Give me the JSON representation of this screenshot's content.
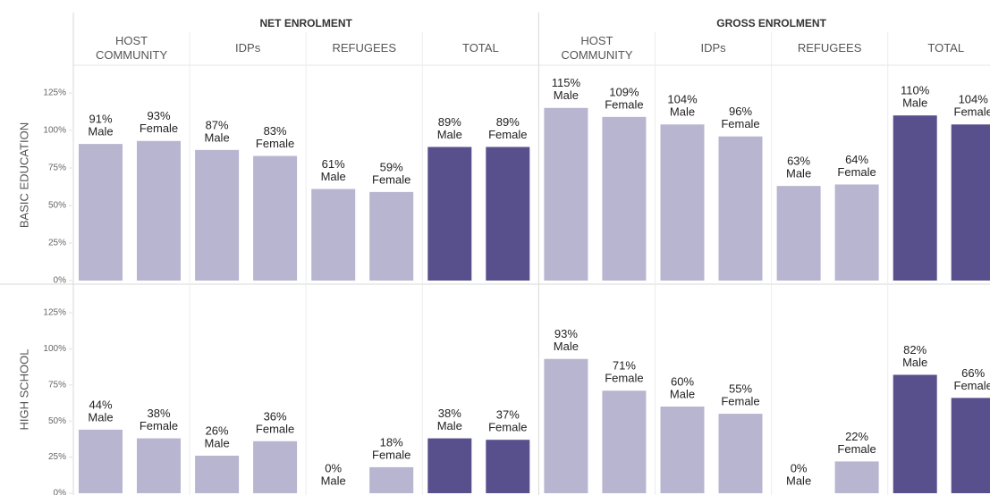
{
  "chart_data": {
    "type": "bar",
    "sections": [
      {
        "title": "NET ENROLMENT"
      },
      {
        "title": "GROSS ENROLMENT"
      }
    ],
    "columns": [
      "HOST COMMUNITY",
      "IDPs",
      "REFUGEES",
      "TOTAL"
    ],
    "colors": [
      "#b7b5cf",
      "#b7b5cf",
      "#b7b5cf",
      "#58508d"
    ],
    "rows": [
      "BASIC EDUCATION",
      "HIGH SCHOOL"
    ],
    "series": [
      {
        "name": "Male",
        "values": [
          [
            [
              91,
              87,
              61,
              89
            ],
            [
              115,
              104,
              63,
              110
            ]
          ],
          [
            [
              44,
              26,
              0,
              38
            ],
            [
              93,
              60,
              0,
              82
            ]
          ]
        ],
        "value_labels": [
          [
            [
              "91%",
              "87%",
              "61%",
              "89%"
            ],
            [
              "115%",
              "104%",
              "63%",
              "110%"
            ]
          ],
          [
            [
              "44%",
              "26%",
              "0%",
              "38%"
            ],
            [
              "93%",
              "60%",
              "0%",
              "82%"
            ]
          ]
        ]
      },
      {
        "name": "Female",
        "values": [
          [
            [
              93,
              83,
              59,
              89
            ],
            [
              109,
              96,
              64,
              104
            ]
          ],
          [
            [
              38,
              36,
              18,
              37
            ],
            [
              71,
              55,
              22,
              66
            ]
          ]
        ],
        "value_labels": [
          [
            [
              "93%",
              "83%",
              "59%",
              "89%"
            ],
            [
              "109%",
              "96%",
              "64%",
              "104%"
            ]
          ],
          [
            [
              "38%",
              "36%",
              "18%",
              "37%"
            ],
            [
              "71%",
              "55%",
              "22%",
              "66%"
            ]
          ]
        ]
      }
    ],
    "ylim": [
      0,
      125
    ],
    "yticks": [
      {
        "value": 0,
        "label": "0%"
      },
      {
        "value": 25,
        "label": "25%"
      },
      {
        "value": 50,
        "label": "50%"
      },
      {
        "value": 75,
        "label": "75%"
      },
      {
        "value": 100,
        "label": "100%"
      },
      {
        "value": 125,
        "label": "125%"
      }
    ]
  }
}
